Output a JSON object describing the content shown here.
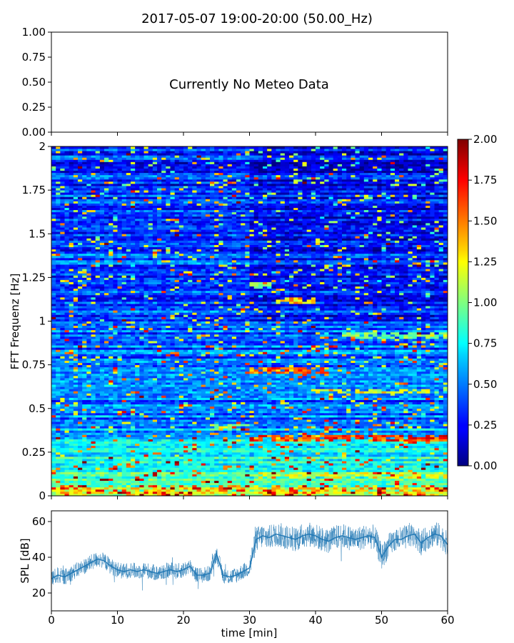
{
  "title": "2017-05-07 19:00-20:00 (50.00_Hz)",
  "meteo_panel": {
    "message": "Currently No Meteo Data",
    "yticks": [
      "0.00",
      "0.25",
      "0.50",
      "0.75",
      "1.00"
    ],
    "ylim": [
      0,
      1
    ]
  },
  "spectrogram": {
    "ylabel": "FFT Frequenz [Hz]",
    "yticks": [
      "0",
      "0.25",
      "0.5",
      "0.75",
      "1",
      "1.25",
      "1.5",
      "1.75",
      "2"
    ],
    "ylim": [
      0,
      2
    ],
    "xlim": [
      0,
      60
    ],
    "colorbar": {
      "ticks": [
        "0.00",
        "0.25",
        "0.50",
        "0.75",
        "1.00",
        "1.25",
        "1.50",
        "1.75",
        "2.00"
      ],
      "range": [
        0,
        2
      ],
      "colormap": "jet"
    },
    "hot_lines": [
      {
        "t0": 30,
        "t1": 60,
        "f": 0.33,
        "v": 1.8
      },
      {
        "t0": 30,
        "t1": 42,
        "f": 0.72,
        "v": 1.7
      },
      {
        "t0": 34,
        "t1": 40,
        "f": 1.12,
        "v": 1.5
      },
      {
        "t0": 40,
        "t1": 60,
        "f": 0.6,
        "v": 1.3
      },
      {
        "t0": 44,
        "t1": 60,
        "f": 0.92,
        "v": 1.1
      },
      {
        "t0": 30,
        "t1": 33,
        "f": 1.21,
        "v": 1.2
      },
      {
        "t0": 30,
        "t1": 60,
        "f": 0.12,
        "v": 1.3
      },
      {
        "t0": 24,
        "t1": 30,
        "f": 0.39,
        "v": 1.2
      },
      {
        "t0": 0,
        "t1": 60,
        "f": 0.03,
        "v": 1.4
      }
    ]
  },
  "chart_data": [
    {
      "type": "heatmap",
      "title": "2017-05-07 19:00-20:00 (50.00_Hz)",
      "xlabel": "time [min]",
      "ylabel": "FFT Frequenz [Hz]",
      "xlim": [
        0,
        60
      ],
      "ylim": [
        0,
        2
      ],
      "colorbar_range": [
        0,
        2
      ]
    },
    {
      "type": "line",
      "xlabel": "time [min]",
      "ylabel": "SPL [dB]",
      "xlim": [
        0,
        60
      ],
      "ylim": [
        10,
        66
      ],
      "xticks": [
        "0",
        "10",
        "20",
        "30",
        "40",
        "50",
        "60"
      ],
      "yticks": [
        "20",
        "40",
        "60"
      ],
      "color": "#1f77b4",
      "series": [
        {
          "x": [
            0,
            1,
            2,
            3,
            4,
            5,
            6,
            7,
            8,
            9,
            10,
            11,
            12,
            13,
            14,
            15,
            16,
            17,
            18,
            19,
            20,
            21,
            22,
            23,
            24,
            25,
            26,
            27,
            28,
            29,
            30,
            31,
            32,
            33,
            34,
            35,
            36,
            37,
            38,
            39,
            40,
            41,
            42,
            43,
            44,
            45,
            46,
            47,
            48,
            49,
            50,
            51,
            52,
            53,
            54,
            55,
            56,
            57,
            58,
            59,
            60
          ],
          "y": [
            28,
            30,
            29,
            31,
            33,
            35,
            37,
            39,
            38,
            35,
            33,
            32,
            33,
            32,
            33,
            32,
            31,
            32,
            33,
            32,
            33,
            35,
            30,
            30,
            31,
            42,
            30,
            29,
            30,
            32,
            34,
            50,
            52,
            51,
            53,
            52,
            51,
            50,
            52,
            53,
            52,
            50,
            49,
            51,
            52,
            51,
            50,
            51,
            52,
            51,
            40,
            46,
            50,
            50,
            52,
            53,
            48,
            51,
            53,
            52,
            47
          ]
        }
      ]
    }
  ]
}
